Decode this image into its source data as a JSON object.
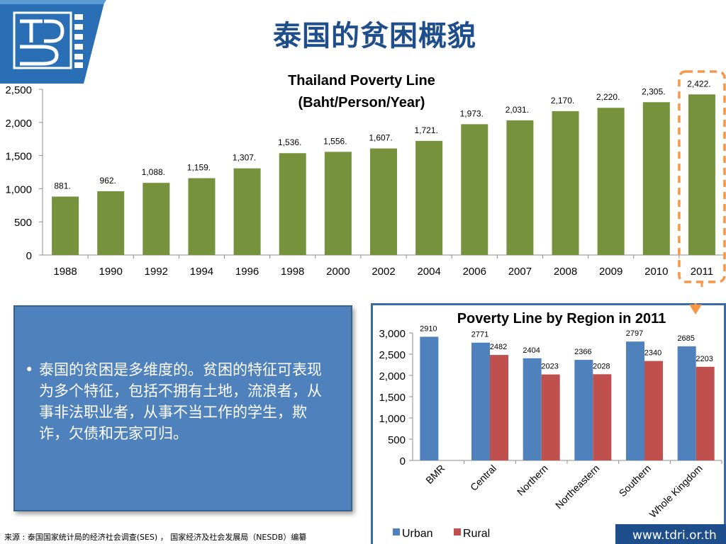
{
  "page": {
    "title": "泰国的贫困概貌",
    "logo_text": "TDRI",
    "source_note": "来源 : 泰国国家统计局的经济社会调查(SES) ， 国家经济及社会发展局（NESDB）编纂",
    "footer_url": "www.tdri.or.th",
    "bullet_text": "泰国的贫困是多维度的。贫困的特征可表现为多个特征，包括不拥有土地，流浪者，从事非法职业者，从事不当工作的学生，欺诈，欠债和无家可归。"
  },
  "colors": {
    "title": "#1f4e8c",
    "bar_green": "#76923c",
    "urban": "#4f81bd",
    "rural": "#c0504d",
    "highlight_dash": "#f79646",
    "text_box_bg": "#4f81bd"
  },
  "chart_data": [
    {
      "type": "bar",
      "title": "Thailand Poverty Line (Baht/Person/Year)",
      "title_lines": [
        "Thailand Poverty Line",
        "(Baht/Person/Year)"
      ],
      "categories": [
        "1988",
        "1990",
        "1992",
        "1994",
        "1996",
        "1998",
        "2000",
        "2002",
        "2004",
        "2006",
        "2007",
        "2008",
        "2009",
        "2010",
        "2011"
      ],
      "values": [
        881,
        962,
        1088,
        1159,
        1307,
        1536,
        1556,
        1607,
        1721,
        1973,
        2031,
        2170,
        2220,
        2305,
        2422
      ],
      "data_labels": [
        "881.",
        "962.",
        "1,088.",
        "1,159.",
        "1,307.",
        "1,536.",
        "1,556.",
        "1,607.",
        "1,721.",
        "1,973.",
        "2,031.",
        "2,170.",
        "2,220.",
        "2,305.",
        "2,422."
      ],
      "ylim": [
        0,
        2500
      ],
      "yticks": [
        0,
        500,
        1000,
        1500,
        2000,
        2500
      ],
      "ytick_labels": [
        "0",
        "500",
        "1,000",
        "1,500",
        "2,000",
        "2,500"
      ],
      "grid": false,
      "highlight": "2011"
    },
    {
      "type": "bar",
      "title": "Poverty Line by Region in 2011",
      "categories": [
        "BMR",
        "Central",
        "Northern",
        "Northeastern",
        "Southern",
        "Whole Kingdom"
      ],
      "series": [
        {
          "name": "Urban",
          "values": [
            2910,
            2771,
            2404,
            2366,
            2797,
            2685
          ]
        },
        {
          "name": "Rural",
          "values": [
            null,
            2482,
            2023,
            2028,
            2340,
            2203
          ]
        }
      ],
      "ylim": [
        0,
        3000
      ],
      "yticks": [
        0,
        500,
        1000,
        1500,
        2000,
        2500,
        3000
      ],
      "ytick_labels": [
        "0",
        "500",
        "1,000",
        "1,500",
        "2,000",
        "2,500",
        "3,000"
      ],
      "legend": "bottom",
      "grid": false
    }
  ]
}
